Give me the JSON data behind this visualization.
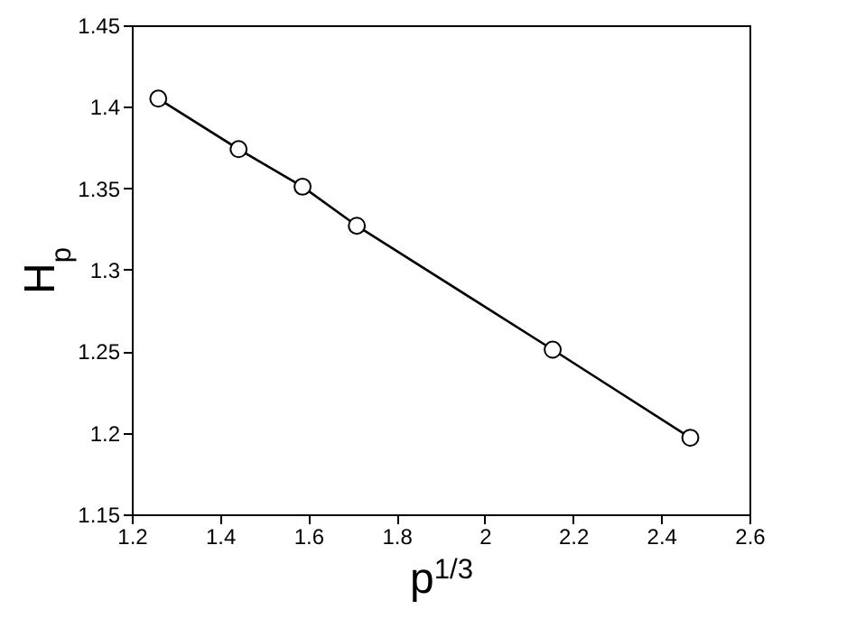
{
  "chart_data": {
    "type": "line",
    "xlabel": "p$^{1/3}$",
    "ylabel": "H$_{p}$",
    "x": [
      1.26,
      1.442,
      1.587,
      1.71,
      2.154,
      2.466
    ],
    "series": [
      {
        "color": "#000000",
        "values": [
          1.405,
          1.374,
          1.351,
          1.327,
          1.251,
          1.197
        ]
      }
    ],
    "xlim": [
      1.2,
      2.6
    ],
    "xticks": [
      1.2,
      1.4,
      1.6,
      1.8,
      2,
      2.2,
      2.4,
      2.6
    ],
    "ylim": [
      1.15,
      1.45
    ],
    "yticks": [
      1.15,
      1.2,
      1.25,
      1.3,
      1.35,
      1.4,
      1.45
    ],
    "marker": "circle",
    "line_style": "solid",
    "grid": false
  }
}
